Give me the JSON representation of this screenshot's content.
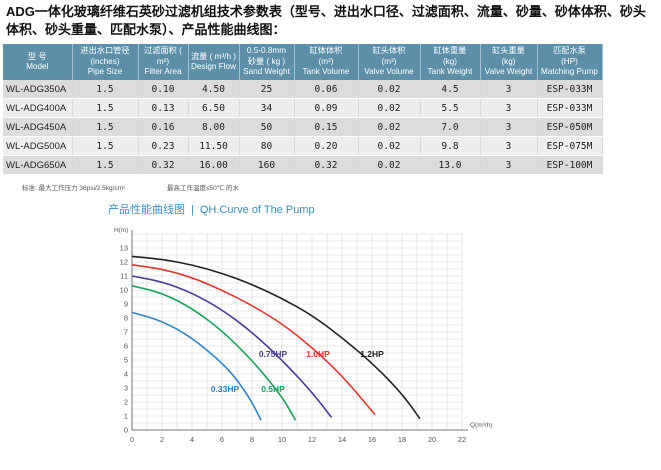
{
  "heading": "ADG一体化玻璃纤维石英砂过滤机组技术参数表（型号、进出水口径、过滤面积、流量、砂量、砂体体积、砂头体积、砂头重量、匹配水泵）、产品性能曲线图：",
  "table": {
    "columns": [
      {
        "cn": "型 号",
        "en": "Model"
      },
      {
        "cn": "进出水口管径",
        "cn2": "(inches)",
        "en": "Pipe Size"
      },
      {
        "cn": "过滤面积 ( m²)",
        "en": "Filter Area"
      },
      {
        "cn": "流量 ( m³/h )",
        "en": "Design Flow"
      },
      {
        "cn": "0.5-0.8mm",
        "cn2": "砂量 ( kg )",
        "en": "Sand Weight"
      },
      {
        "cn": "缸体体积",
        "cn2": "(m³)",
        "en": "Tank Volume"
      },
      {
        "cn": "缸头体积",
        "cn2": "(m³)",
        "en": "Valve Volume"
      },
      {
        "cn": "缸体重量",
        "cn2": "(kg)",
        "en": "Tank Weight"
      },
      {
        "cn": "缸头重量",
        "cn2": "(kg)",
        "en": "Valve Weight"
      },
      {
        "cn": "匹配水泵",
        "cn2": "(HP)",
        "en": "Matching Pump"
      }
    ],
    "rows": [
      [
        "WL-ADG350A",
        "1.5",
        "0.10",
        "4.50",
        "25",
        "0.06",
        "0.02",
        "4.5",
        "3",
        "ESP-033M"
      ],
      [
        "WL-ADG400A",
        "1.5",
        "0.13",
        "6.50",
        "34",
        "0.09",
        "0.02",
        "5.5",
        "3",
        "ESP-033M"
      ],
      [
        "WL-ADG450A",
        "1.5",
        "0.16",
        "8.00",
        "50",
        "0.15",
        "0.02",
        "7.0",
        "3",
        "ESP-050M"
      ],
      [
        "WL-ADG500A",
        "1.5",
        "0.23",
        "11.50",
        "80",
        "0.20",
        "0.02",
        "9.8",
        "3",
        "ESP-075M"
      ],
      [
        "WL-ADG650A",
        "1.5",
        "0.32",
        "16.00",
        "160",
        "0.32",
        "0.02",
        "13.0",
        "3",
        "ESP-100M"
      ]
    ]
  },
  "notes": {
    "pressure": "标准: 最大工作压力 36psi/2.5kg/cm²",
    "temperature": "最高工作温度≤50℃ 的水"
  },
  "curve": {
    "title_cn": "产品性能曲线图",
    "title_en": "QH.Curve of The Pump",
    "separator": "|"
  },
  "chart_data": {
    "type": "line",
    "title": "QH.Curve of The Pump",
    "xlabel": "Q(m³/h)",
    "ylabel": "H(m)",
    "xlim": [
      0,
      22
    ],
    "ylim": [
      0,
      14
    ],
    "xticks": [
      "0",
      "2",
      "4",
      "6",
      "8",
      "10",
      "12",
      "14",
      "16",
      "18",
      "20",
      "22"
    ],
    "yticks": [
      "0",
      "1",
      "2",
      "3",
      "4",
      "5",
      "6",
      "7",
      "8",
      "9",
      "10",
      "11",
      "12",
      "13"
    ],
    "grid": true,
    "series": [
      {
        "name": "0.33HP",
        "color": "#2f83c9",
        "label_at": [
          6.2,
          2.7
        ],
        "points": [
          [
            0,
            8.4
          ],
          [
            2,
            7.8
          ],
          [
            4,
            6.6
          ],
          [
            6,
            4.8
          ],
          [
            7,
            3.6
          ],
          [
            8,
            2.0
          ],
          [
            8.6,
            0.7
          ]
        ]
      },
      {
        "name": "0.5HP",
        "color": "#18a35c",
        "label_at": [
          9.4,
          2.7
        ],
        "points": [
          [
            0,
            10.3
          ],
          [
            2,
            9.8
          ],
          [
            4,
            8.7
          ],
          [
            6,
            7.1
          ],
          [
            8,
            5.0
          ],
          [
            10,
            2.4
          ],
          [
            10.9,
            0.7
          ]
        ]
      },
      {
        "name": "0.75HP",
        "color": "#4a3d9a",
        "label_at": [
          9.4,
          5.2
        ],
        "points": [
          [
            0,
            11.0
          ],
          [
            2,
            10.6
          ],
          [
            4,
            9.8
          ],
          [
            6,
            8.6
          ],
          [
            8,
            7.0
          ],
          [
            10,
            5.0
          ],
          [
            12,
            2.7
          ],
          [
            13.3,
            0.9
          ]
        ]
      },
      {
        "name": "1.0HP",
        "color": "#e8352b",
        "label_at": [
          12.4,
          5.2
        ],
        "points": [
          [
            0,
            11.8
          ],
          [
            2,
            11.5
          ],
          [
            4,
            10.9
          ],
          [
            6,
            10.0
          ],
          [
            8,
            8.9
          ],
          [
            10,
            7.6
          ],
          [
            12,
            5.9
          ],
          [
            14,
            3.9
          ],
          [
            16.2,
            1.1
          ]
        ]
      },
      {
        "name": "1.2HP",
        "color": "#222222",
        "label_at": [
          16.0,
          5.2
        ],
        "points": [
          [
            0,
            12.4
          ],
          [
            2,
            12.2
          ],
          [
            4,
            11.8
          ],
          [
            6,
            11.2
          ],
          [
            8,
            10.4
          ],
          [
            10,
            9.4
          ],
          [
            12,
            8.2
          ],
          [
            14,
            6.6
          ],
          [
            16,
            4.8
          ],
          [
            18,
            2.6
          ],
          [
            19.2,
            0.8
          ]
        ]
      }
    ]
  }
}
